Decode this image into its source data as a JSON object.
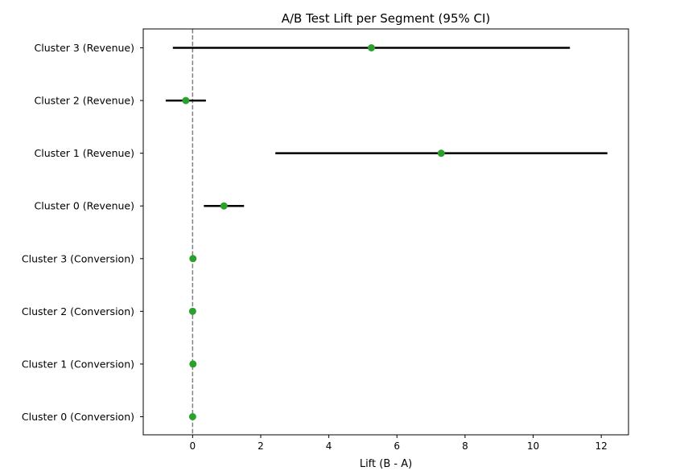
{
  "chart_data": {
    "type": "forest",
    "title": "A/B Test Lift per Segment (95% CI)",
    "xlabel": "Lift (B - A)",
    "ylabel": "",
    "xlim": [
      -1.45,
      12.8
    ],
    "xticks": [
      0,
      2,
      4,
      6,
      8,
      10,
      12
    ],
    "reference_line": 0,
    "grid": false,
    "point_color": "#2ca02c",
    "ci_color": "#000000",
    "reference_line_color": "#808080",
    "segments": [
      {
        "label": "Cluster 0 (Conversion)",
        "lift": 0.0,
        "ci": [
          -0.01,
          0.01
        ]
      },
      {
        "label": "Cluster 1 (Conversion)",
        "lift": 0.01,
        "ci": [
          0.0,
          0.02
        ]
      },
      {
        "label": "Cluster 2 (Conversion)",
        "lift": 0.0,
        "ci": [
          -0.01,
          0.01
        ]
      },
      {
        "label": "Cluster 3 (Conversion)",
        "lift": 0.01,
        "ci": [
          0.0,
          0.02
        ]
      },
      {
        "label": "Cluster 0 (Revenue)",
        "lift": 0.92,
        "ci": [
          0.33,
          1.51
        ]
      },
      {
        "label": "Cluster 1 (Revenue)",
        "lift": 7.3,
        "ci": [
          2.43,
          12.18
        ]
      },
      {
        "label": "Cluster 2 (Revenue)",
        "lift": -0.2,
        "ci": [
          -0.79,
          0.39
        ]
      },
      {
        "label": "Cluster 3 (Revenue)",
        "lift": 5.25,
        "ci": [
          -0.58,
          11.08
        ]
      }
    ]
  }
}
